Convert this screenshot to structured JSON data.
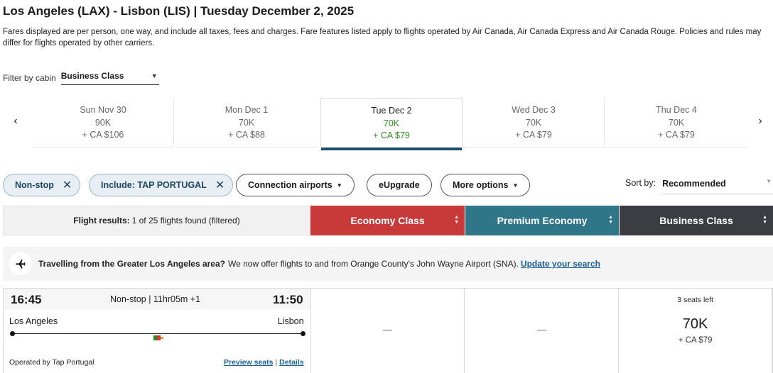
{
  "header": {
    "title": "Los Angeles (LAX) - Lisbon (LIS)  |  Tuesday December 2, 2025",
    "disclaimer": "Fares displayed are per person, one way, and include all taxes, fees and charges. Fare features listed apply to flights operated by Air Canada, Air Canada Express and Air Canada Rouge. Policies and rules may differ for flights operated by other carriers."
  },
  "cabin_filter": {
    "label": "Filter by cabin",
    "value": "Business Class"
  },
  "date_strip": {
    "prev_icon": "chevron-left-icon",
    "next_icon": "chevron-right-icon",
    "dates": [
      {
        "day": "Sun Nov 30",
        "points": "90K",
        "cash": "+ CA $106",
        "selected": false
      },
      {
        "day": "Mon Dec 1",
        "points": "70K",
        "cash": "+ CA $88",
        "selected": false
      },
      {
        "day": "Tue Dec 2",
        "points": "70K",
        "cash": "+ CA $79",
        "selected": true
      },
      {
        "day": "Wed Dec 3",
        "points": "70K",
        "cash": "+ CA $79",
        "selected": false
      },
      {
        "day": "Thu Dec 4",
        "points": "70K",
        "cash": "+ CA $79",
        "selected": false
      }
    ]
  },
  "filters": {
    "active": [
      {
        "label": "Non-stop"
      },
      {
        "label": "Include: TAP PORTUGAL"
      }
    ],
    "options": [
      {
        "label": "Connection airports",
        "dropdown": true
      },
      {
        "label": "eUpgrade",
        "dropdown": false
      },
      {
        "label": "More options",
        "dropdown": true
      }
    ]
  },
  "sort": {
    "label": "Sort by:",
    "value": "Recommended"
  },
  "results_header": {
    "results_label": "Flight results:",
    "results_count": "1 of 25 flights found (filtered)",
    "cabins": [
      {
        "label": "Economy Class",
        "color": "#c8393a"
      },
      {
        "label": "Premium Economy",
        "color": "#2f7788"
      },
      {
        "label": "Business Class",
        "color": "#3c3d42"
      }
    ]
  },
  "notice": {
    "icon": "airplane-icon",
    "bold": "Travelling from the Greater Los Angeles area?",
    "text": "We now offer flights to and from Orange County's John Wayne Airport (SNA).",
    "link": "Update your search"
  },
  "flight": {
    "departure_time": "16:45",
    "duration": "Non-stop | 11hr05m +1",
    "arrival_time": "11:50",
    "origin": "Los Angeles",
    "destination": "Lisbon",
    "operated_by": "Operated by Tap Portugal",
    "preview_seats": "Preview seats",
    "details": "Details",
    "separator": "|",
    "economy_fare": "—",
    "premium_fare": "—",
    "business": {
      "seats_left": "3 seats left",
      "points": "70K",
      "cash": "+ CA $79"
    }
  }
}
